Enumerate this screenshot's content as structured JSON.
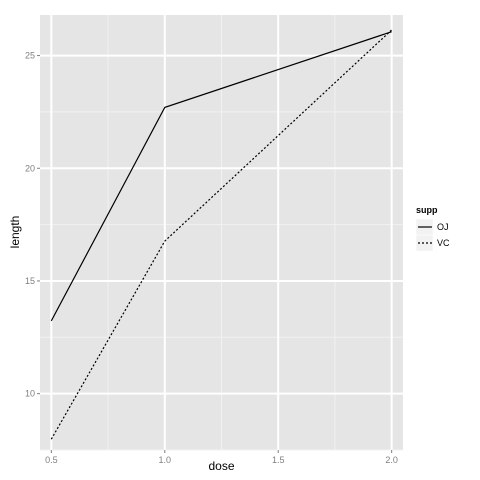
{
  "chart_data": {
    "type": "line",
    "xlabel": "dose",
    "ylabel": "length",
    "x": [
      0.5,
      1.0,
      2.0
    ],
    "xlim": [
      0.45,
      2.05
    ],
    "ylim": [
      7.5,
      26.8
    ],
    "x_ticks": [
      0.5,
      1.0,
      1.5,
      2.0
    ],
    "x_tick_labels": [
      "0.5",
      "1.0",
      "1.5",
      "2.0"
    ],
    "y_ticks": [
      10,
      15,
      20,
      25
    ],
    "y_tick_labels": [
      "10",
      "15",
      "20",
      "25"
    ],
    "grid": true,
    "legend": {
      "title": "supp",
      "position": "right"
    },
    "series": [
      {
        "name": "OJ",
        "values": [
          13.23,
          22.7,
          26.06
        ],
        "line_style": "solid"
      },
      {
        "name": "VC",
        "values": [
          7.98,
          16.77,
          26.14
        ],
        "line_style": "dotted"
      }
    ],
    "colors": {
      "panel_background": "#e5e5e5",
      "grid_major": "#ffffff",
      "grid_minor": "#f2f2f2",
      "line": "#000000",
      "tick_label": "#7f7f7f"
    }
  }
}
